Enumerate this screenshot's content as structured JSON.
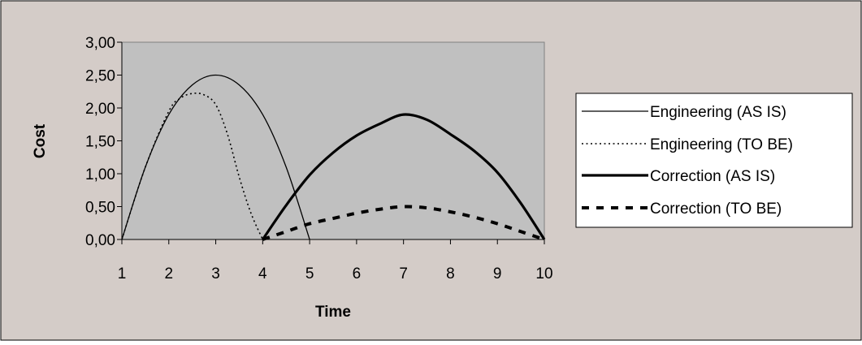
{
  "chart_data": {
    "type": "line",
    "title": "",
    "xlabel": "Time",
    "ylabel": "Cost",
    "xlim": [
      1,
      10
    ],
    "ylim": [
      0,
      3
    ],
    "xticks": [
      1,
      2,
      3,
      4,
      5,
      6,
      7,
      8,
      9,
      10
    ],
    "xtick_labels": [
      "1",
      "2",
      "3",
      "4",
      "5",
      "6",
      "7",
      "8",
      "9",
      "10"
    ],
    "yticks": [
      0,
      0.5,
      1,
      1.5,
      2,
      2.5,
      3
    ],
    "ytick_labels": [
      "0,00",
      "0,50",
      "1,00",
      "1,50",
      "2,00",
      "2,50",
      "3,00"
    ],
    "grid": false,
    "legend_position": "right",
    "colors": {
      "frame_background": "#d4ccc8",
      "plot_background": "#c0c0c0",
      "line": "#000000"
    },
    "series": [
      {
        "name": "Engineering (AS IS)",
        "style": "solid-thin",
        "x": [
          1,
          1.5,
          2,
          2.5,
          3,
          3.5,
          4,
          4.5,
          5
        ],
        "y": [
          0,
          1.1,
          1.9,
          2.35,
          2.5,
          2.35,
          1.9,
          1.1,
          0
        ]
      },
      {
        "name": "Engineering (TO BE)",
        "style": "dotted",
        "x": [
          1,
          1.5,
          2,
          2.25,
          2.5,
          2.75,
          3,
          3.25,
          3.5,
          3.75,
          4
        ],
        "y": [
          0,
          1.1,
          1.95,
          2.15,
          2.22,
          2.2,
          2.05,
          1.6,
          0.95,
          0.4,
          0
        ]
      },
      {
        "name": "Correction (AS IS)",
        "style": "solid-thick",
        "x": [
          4,
          4.5,
          5,
          5.5,
          6,
          6.5,
          7,
          7.5,
          8,
          8.5,
          9,
          9.5,
          10
        ],
        "y": [
          0,
          0.52,
          0.98,
          1.32,
          1.58,
          1.76,
          1.9,
          1.82,
          1.6,
          1.35,
          1.02,
          0.55,
          0
        ]
      },
      {
        "name": "Correction (TO BE)",
        "style": "dashed-thick",
        "x": [
          4,
          4.5,
          5,
          5.5,
          6,
          6.5,
          7,
          7.5,
          8,
          8.5,
          9,
          9.5,
          10
        ],
        "y": [
          0,
          0.12,
          0.24,
          0.32,
          0.4,
          0.46,
          0.5,
          0.48,
          0.42,
          0.34,
          0.24,
          0.12,
          0
        ]
      }
    ]
  }
}
